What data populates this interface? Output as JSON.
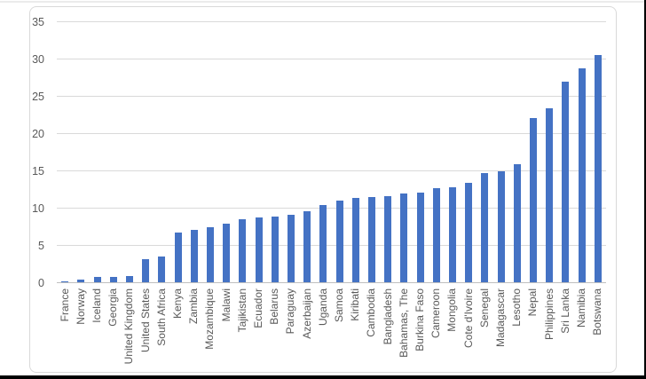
{
  "chart_data": {
    "type": "bar",
    "title": "",
    "xlabel": "",
    "ylabel": "",
    "categories": [
      "France",
      "Norway",
      "Iceland",
      "Georgia",
      "United Kingdom",
      "United States",
      "South Africa",
      "Kenya",
      "Zambia",
      "Mozambique",
      "Malawi",
      "Tajikistan",
      "Ecuador",
      "Belarus",
      "Paraguay",
      "Azerbaijan",
      "Uganda",
      "Samoa",
      "Kiribati",
      "Cambodia",
      "Bangladesh",
      "Bahamas, The",
      "Burkina Faso",
      "Cameroon",
      "Mongolia",
      "Cote d'Ivoire",
      "Senegal",
      "Madagascar",
      "Lesotho",
      "Nepal",
      "Philippines",
      "Sri Lanka",
      "Namibia",
      "Botswana"
    ],
    "values": [
      0.2,
      0.5,
      0.8,
      0.8,
      0.9,
      3.2,
      3.6,
      6.8,
      7.1,
      7.5,
      8.0,
      8.6,
      8.8,
      8.9,
      9.2,
      9.6,
      10.5,
      11.1,
      11.4,
      11.5,
      11.7,
      12.0,
      12.1,
      12.7,
      12.8,
      13.4,
      14.8,
      15.0,
      16.0,
      22.1,
      23.5,
      27.0,
      28.8,
      30.6
    ],
    "ylim": [
      0,
      35
    ],
    "yticks": [
      0,
      5,
      10,
      15,
      20,
      25,
      30,
      35
    ],
    "grid": true,
    "legend": false,
    "bar_orientation": "vertical",
    "x_tick_rotation_degrees": 90,
    "colors": {
      "bar": "#4472C4",
      "gridline": "#D9D9D9",
      "axis_line": "#BFBFBF",
      "tick_text": "#595959",
      "chart_border": "#D9D9D9",
      "page_top_border": "#EBEBEB",
      "page_bottom_border": "#000000",
      "page_right_border": "#000000",
      "background": "#FFFFFF"
    }
  }
}
